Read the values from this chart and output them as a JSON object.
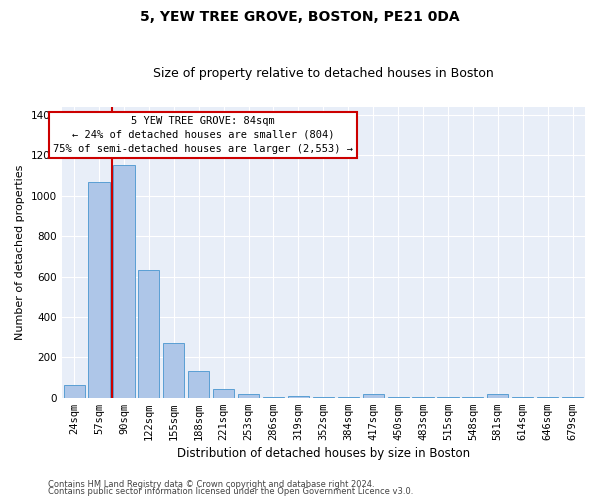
{
  "title": "5, YEW TREE GROVE, BOSTON, PE21 0DA",
  "subtitle": "Size of property relative to detached houses in Boston",
  "xlabel": "Distribution of detached houses by size in Boston",
  "ylabel": "Number of detached properties",
  "bar_color": "#aec6e8",
  "bar_edge_color": "#5a9fd4",
  "background_color": "#e8eef8",
  "grid_color": "#ffffff",
  "categories": [
    "24sqm",
    "57sqm",
    "90sqm",
    "122sqm",
    "155sqm",
    "188sqm",
    "221sqm",
    "253sqm",
    "286sqm",
    "319sqm",
    "352sqm",
    "384sqm",
    "417sqm",
    "450sqm",
    "483sqm",
    "515sqm",
    "548sqm",
    "581sqm",
    "614sqm",
    "646sqm",
    "679sqm"
  ],
  "values": [
    65,
    1070,
    1155,
    635,
    270,
    130,
    45,
    20,
    5,
    10,
    5,
    5,
    20,
    5,
    5,
    5,
    5,
    20,
    5,
    5,
    5
  ],
  "ylim": [
    0,
    1440
  ],
  "yticks": [
    0,
    200,
    400,
    600,
    800,
    1000,
    1200,
    1400
  ],
  "vline_x": 1.5,
  "annotation_line1": "5 YEW TREE GROVE: 84sqm",
  "annotation_line2": "← 24% of detached houses are smaller (804)",
  "annotation_line3": "75% of semi-detached houses are larger (2,553) →",
  "footer_line1": "Contains HM Land Registry data © Crown copyright and database right 2024.",
  "footer_line2": "Contains public sector information licensed under the Open Government Licence v3.0.",
  "vline_color": "#cc0000",
  "annotation_box_color": "#cc0000",
  "title_fontsize": 10,
  "subtitle_fontsize": 9,
  "xlabel_fontsize": 8.5,
  "ylabel_fontsize": 8,
  "tick_fontsize": 7.5,
  "annotation_fontsize": 7.5,
  "footer_fontsize": 6
}
